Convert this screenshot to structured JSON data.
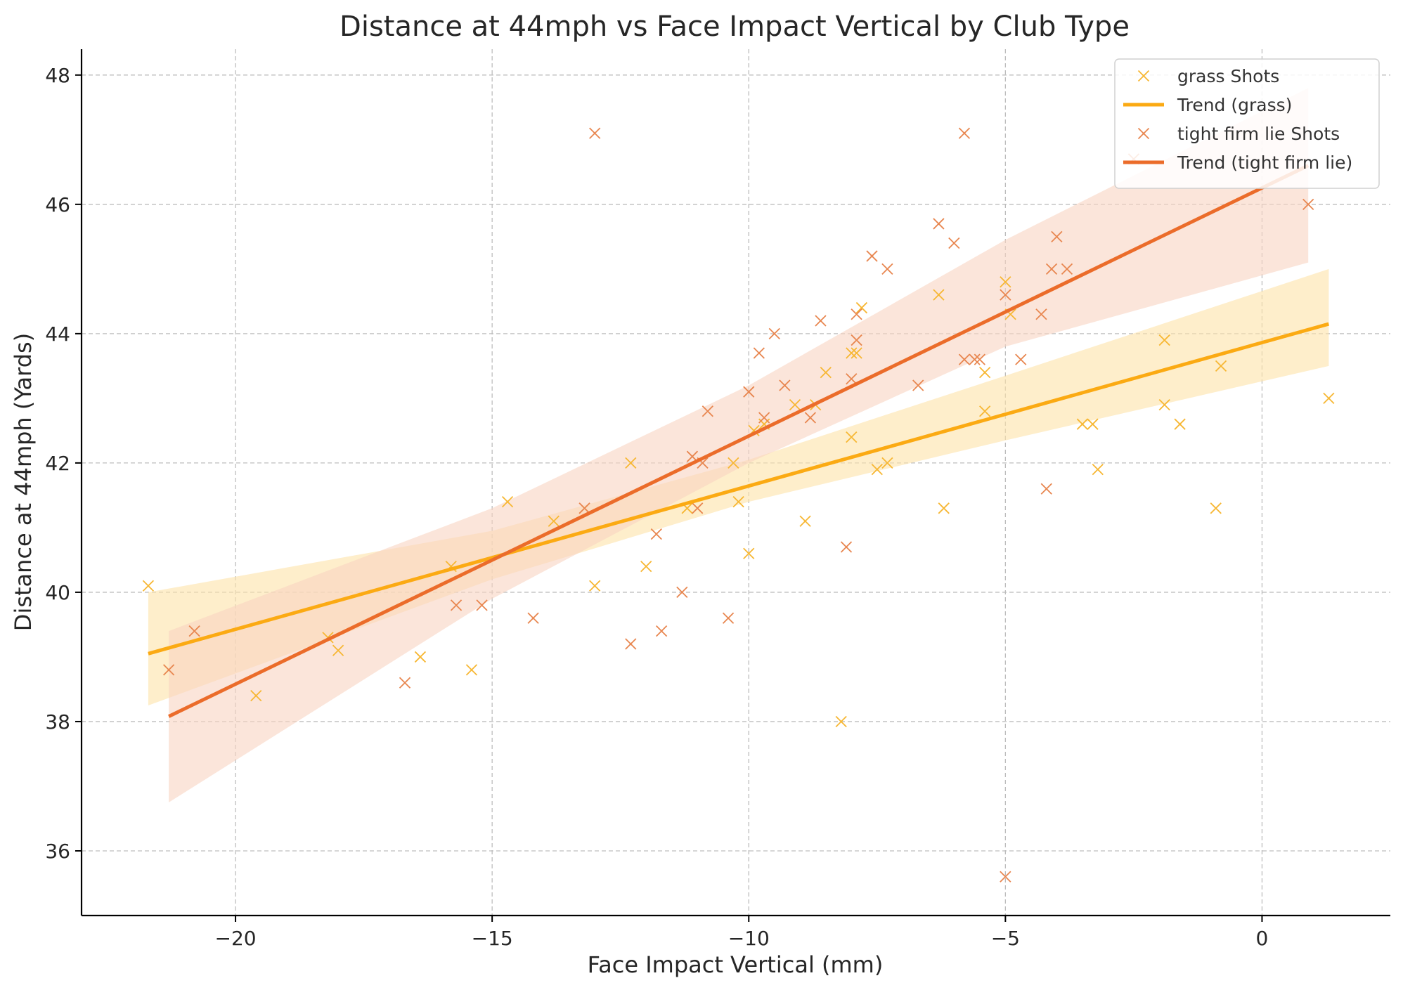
{
  "chart_data": {
    "type": "scatter",
    "title": "Distance at 44mph vs Face Impact Vertical by Club Type",
    "xlabel": "Face Impact Vertical (mm)",
    "ylabel": "Distance at 44mph (Yards)",
    "xlim": [
      -23,
      2.5
    ],
    "ylim": [
      35,
      48.4
    ],
    "xticks": [
      -20,
      -15,
      -10,
      -5,
      0
    ],
    "xtick_labels": [
      "−20",
      "−15",
      "−10",
      "−5",
      "0"
    ],
    "yticks": [
      36,
      38,
      40,
      42,
      44,
      46,
      48
    ],
    "ytick_labels": [
      "36",
      "38",
      "40",
      "42",
      "44",
      "46",
      "48"
    ],
    "grid": true,
    "legend_position": "top-right",
    "series": [
      {
        "name": "grass Shots",
        "kind": "scatter",
        "marker": "x",
        "color": "#f7b733",
        "points": [
          [
            -21.7,
            40.1
          ],
          [
            -19.6,
            38.4
          ],
          [
            -18.0,
            39.1
          ],
          [
            -18.2,
            39.3
          ],
          [
            -16.4,
            39.0
          ],
          [
            -15.8,
            40.4
          ],
          [
            -15.4,
            38.8
          ],
          [
            -14.7,
            41.4
          ],
          [
            -13.8,
            41.1
          ],
          [
            -13.0,
            40.1
          ],
          [
            -12.3,
            42.0
          ],
          [
            -12.0,
            40.4
          ],
          [
            -11.2,
            41.3
          ],
          [
            -10.3,
            42.0
          ],
          [
            -10.2,
            41.4
          ],
          [
            -10.0,
            40.6
          ],
          [
            -9.9,
            42.5
          ],
          [
            -9.7,
            42.6
          ],
          [
            -9.1,
            42.9
          ],
          [
            -8.9,
            41.1
          ],
          [
            -8.7,
            42.9
          ],
          [
            -8.5,
            43.4
          ],
          [
            -8.2,
            38.0
          ],
          [
            -8.0,
            43.7
          ],
          [
            -8.0,
            42.4
          ],
          [
            -7.9,
            43.7
          ],
          [
            -7.8,
            44.4
          ],
          [
            -7.5,
            41.9
          ],
          [
            -7.3,
            42.0
          ],
          [
            -6.3,
            44.6
          ],
          [
            -6.2,
            41.3
          ],
          [
            -5.4,
            43.4
          ],
          [
            -5.4,
            42.8
          ],
          [
            -5.0,
            44.8
          ],
          [
            -4.9,
            44.3
          ],
          [
            -3.5,
            42.6
          ],
          [
            -3.3,
            42.6
          ],
          [
            -3.2,
            41.9
          ],
          [
            -1.9,
            43.9
          ],
          [
            -1.9,
            42.9
          ],
          [
            -1.6,
            42.6
          ],
          [
            -0.9,
            41.3
          ],
          [
            -0.8,
            43.5
          ],
          [
            1.3,
            43.0
          ]
        ]
      },
      {
        "name": "Trend (grass)",
        "kind": "line",
        "color": "#fbaa13",
        "x": [
          -21.7,
          1.3
        ],
        "y": [
          39.05,
          44.15
        ],
        "ci_x": [
          -21.7,
          -15.0,
          -10.0,
          -5.0,
          1.3
        ],
        "ci_lower": [
          38.25,
          40.2,
          41.4,
          42.35,
          43.5
        ],
        "ci_upper": [
          40.0,
          40.95,
          42.05,
          43.35,
          45.0
        ],
        "ci_color": "#fde2a8"
      },
      {
        "name": "tight firm lie Shots",
        "kind": "scatter",
        "marker": "x",
        "color": "#e8864f",
        "points": [
          [
            -21.3,
            38.8
          ],
          [
            -20.8,
            39.4
          ],
          [
            -16.7,
            38.6
          ],
          [
            -15.7,
            39.8
          ],
          [
            -15.2,
            39.8
          ],
          [
            -14.2,
            39.6
          ],
          [
            -13.2,
            41.3
          ],
          [
            -13.0,
            47.1
          ],
          [
            -12.3,
            39.2
          ],
          [
            -11.8,
            40.9
          ],
          [
            -11.7,
            39.4
          ],
          [
            -11.3,
            40.0
          ],
          [
            -11.1,
            42.1
          ],
          [
            -11.0,
            41.3
          ],
          [
            -10.9,
            42.0
          ],
          [
            -10.8,
            42.8
          ],
          [
            -10.4,
            39.6
          ],
          [
            -10.0,
            43.1
          ],
          [
            -9.8,
            43.7
          ],
          [
            -9.7,
            42.7
          ],
          [
            -9.5,
            44.0
          ],
          [
            -9.3,
            43.2
          ],
          [
            -8.8,
            42.7
          ],
          [
            -8.6,
            44.2
          ],
          [
            -8.1,
            40.7
          ],
          [
            -8.0,
            43.3
          ],
          [
            -7.9,
            44.3
          ],
          [
            -7.9,
            43.9
          ],
          [
            -7.6,
            45.2
          ],
          [
            -7.3,
            45.0
          ],
          [
            -6.7,
            43.2
          ],
          [
            -6.3,
            45.7
          ],
          [
            -6.0,
            45.4
          ],
          [
            -5.8,
            47.1
          ],
          [
            -5.8,
            43.6
          ],
          [
            -5.6,
            43.6
          ],
          [
            -5.5,
            43.6
          ],
          [
            -5.0,
            44.6
          ],
          [
            -5.0,
            35.6
          ],
          [
            -4.7,
            43.6
          ],
          [
            -4.3,
            44.3
          ],
          [
            -4.2,
            41.6
          ],
          [
            -4.1,
            45.0
          ],
          [
            -4.0,
            45.5
          ],
          [
            -3.8,
            45.0
          ],
          [
            -2.5,
            46.7
          ],
          [
            0.9,
            46.0
          ]
        ]
      },
      {
        "name": "Trend (tight firm lie)",
        "kind": "line",
        "color": "#eb6c2a",
        "x": [
          -21.3,
          0.9
        ],
        "y": [
          38.08,
          46.6
        ],
        "ci_x": [
          -21.3,
          -15.0,
          -10.0,
          -5.0,
          0.9
        ],
        "ci_lower": [
          36.75,
          39.9,
          42.0,
          43.8,
          45.1
        ],
        "ci_upper": [
          39.4,
          41.3,
          43.2,
          45.45,
          47.8
        ],
        "ci_color": "#f9d3c1"
      }
    ]
  }
}
